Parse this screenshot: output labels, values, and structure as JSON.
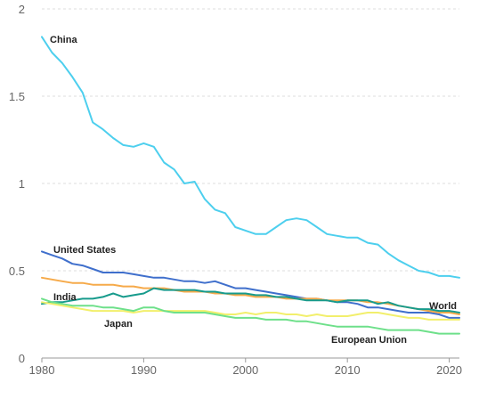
{
  "chart_data": {
    "type": "line",
    "title": "",
    "xlabel": "",
    "ylabel": "",
    "xlim": [
      1980,
      2021
    ],
    "ylim": [
      0,
      2
    ],
    "x_ticks": [
      1980,
      1990,
      2000,
      2010,
      2020
    ],
    "x_tick_labels": [
      "1980",
      "1990",
      "2000",
      "2010",
      "2020"
    ],
    "y_ticks": [
      0,
      0.5,
      1,
      1.5,
      2
    ],
    "y_tick_labels": [
      "0",
      "0.5",
      "1",
      "1.5",
      "2"
    ],
    "grid": "horizontal",
    "legend": "inline-labels",
    "x": [
      1980,
      1981,
      1982,
      1983,
      1984,
      1985,
      1986,
      1987,
      1988,
      1989,
      1990,
      1991,
      1992,
      1993,
      1994,
      1995,
      1996,
      1997,
      1998,
      1999,
      2000,
      2001,
      2002,
      2003,
      2004,
      2005,
      2006,
      2007,
      2008,
      2009,
      2010,
      2011,
      2012,
      2013,
      2014,
      2015,
      2016,
      2017,
      2018,
      2019,
      2020,
      2021
    ],
    "series": [
      {
        "name": "China",
        "color": "#4dcfee",
        "values": [
          1.84,
          1.75,
          1.69,
          1.61,
          1.52,
          1.35,
          1.31,
          1.26,
          1.22,
          1.21,
          1.23,
          1.21,
          1.12,
          1.08,
          1.0,
          1.01,
          0.91,
          0.85,
          0.83,
          0.75,
          0.73,
          0.71,
          0.71,
          0.75,
          0.79,
          0.8,
          0.79,
          0.75,
          0.71,
          0.7,
          0.69,
          0.69,
          0.66,
          0.65,
          0.6,
          0.56,
          0.53,
          0.5,
          0.49,
          0.47,
          0.47,
          0.46
        ]
      },
      {
        "name": "United States",
        "color": "#3f6fcc",
        "values": [
          0.61,
          0.59,
          0.57,
          0.54,
          0.53,
          0.51,
          0.49,
          0.49,
          0.49,
          0.48,
          0.47,
          0.46,
          0.46,
          0.45,
          0.44,
          0.44,
          0.43,
          0.44,
          0.42,
          0.4,
          0.4,
          0.39,
          0.38,
          0.37,
          0.36,
          0.35,
          0.34,
          0.34,
          0.33,
          0.32,
          0.32,
          0.31,
          0.29,
          0.29,
          0.28,
          0.27,
          0.26,
          0.26,
          0.26,
          0.25,
          0.23,
          0.23
        ]
      },
      {
        "name": "India",
        "color": "#f6aa4a",
        "values": [
          0.46,
          0.45,
          0.44,
          0.43,
          0.43,
          0.42,
          0.42,
          0.42,
          0.41,
          0.41,
          0.4,
          0.4,
          0.4,
          0.39,
          0.38,
          0.38,
          0.38,
          0.37,
          0.37,
          0.36,
          0.36,
          0.35,
          0.35,
          0.35,
          0.34,
          0.34,
          0.34,
          0.34,
          0.33,
          0.33,
          0.33,
          0.33,
          0.32,
          0.32,
          0.31,
          0.3,
          0.29,
          0.28,
          0.27,
          0.26,
          0.26,
          0.25
        ]
      },
      {
        "name": "World",
        "color": "#179b8c",
        "values": [
          0.31,
          0.32,
          0.32,
          0.33,
          0.34,
          0.34,
          0.35,
          0.37,
          0.35,
          0.36,
          0.37,
          0.4,
          0.39,
          0.39,
          0.39,
          0.39,
          0.38,
          0.38,
          0.37,
          0.37,
          0.37,
          0.36,
          0.36,
          0.35,
          0.35,
          0.34,
          0.33,
          0.33,
          0.33,
          0.32,
          0.33,
          0.33,
          0.33,
          0.31,
          0.32,
          0.3,
          0.29,
          0.28,
          0.28,
          0.27,
          0.27,
          0.26
        ]
      },
      {
        "name": "Japan",
        "color": "#f2ef6c",
        "values": [
          0.32,
          0.31,
          0.3,
          0.29,
          0.28,
          0.27,
          0.27,
          0.27,
          0.27,
          0.26,
          0.27,
          0.27,
          0.27,
          0.27,
          0.27,
          0.27,
          0.27,
          0.26,
          0.25,
          0.25,
          0.26,
          0.25,
          0.26,
          0.26,
          0.25,
          0.25,
          0.24,
          0.25,
          0.24,
          0.24,
          0.24,
          0.25,
          0.26,
          0.26,
          0.25,
          0.24,
          0.23,
          0.23,
          0.22,
          0.22,
          0.22,
          0.22
        ]
      },
      {
        "name": "European Union",
        "color": "#6ee08a",
        "values": [
          0.34,
          0.32,
          0.31,
          0.3,
          0.3,
          0.3,
          0.29,
          0.29,
          0.28,
          0.27,
          0.29,
          0.29,
          0.27,
          0.26,
          0.26,
          0.26,
          0.26,
          0.25,
          0.24,
          0.23,
          0.23,
          0.23,
          0.22,
          0.22,
          0.22,
          0.21,
          0.21,
          0.2,
          0.19,
          0.18,
          0.18,
          0.18,
          0.18,
          0.17,
          0.16,
          0.16,
          0.16,
          0.16,
          0.15,
          0.14,
          0.14,
          0.14
        ]
      }
    ]
  }
}
